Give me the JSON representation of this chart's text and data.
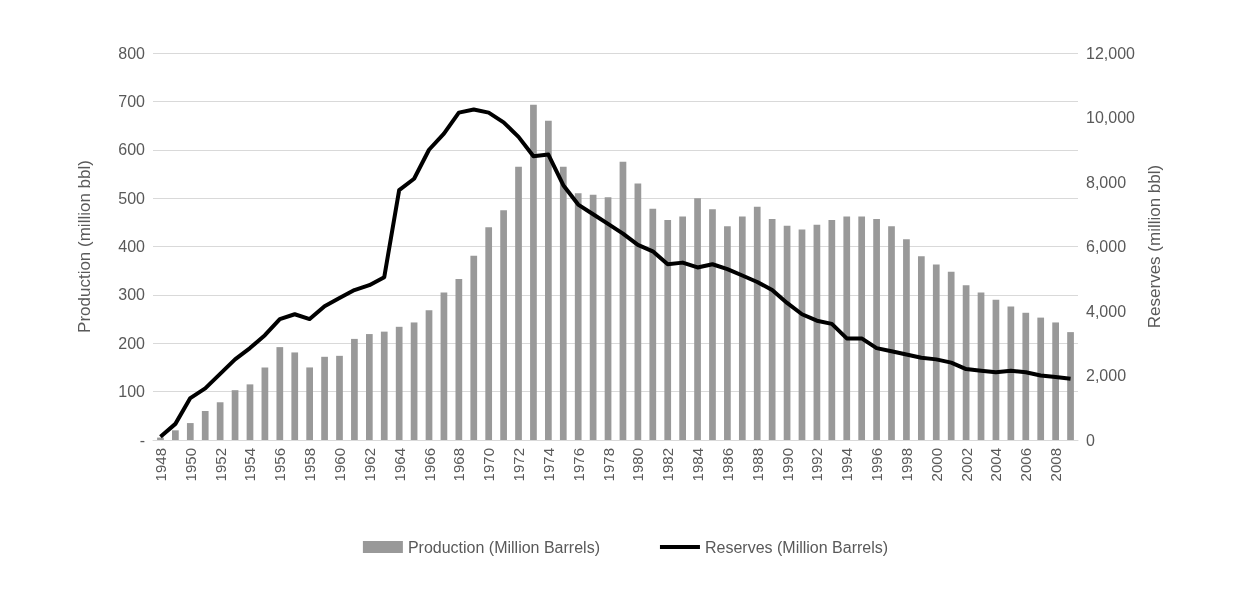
{
  "chart_data": {
    "type": "bar",
    "categories": [
      "1948",
      null,
      "1950",
      null,
      "1952",
      null,
      "1954",
      null,
      "1956",
      null,
      "1958",
      null,
      "1960",
      null,
      "1962",
      null,
      "1964",
      null,
      "1966",
      null,
      "1968",
      null,
      "1970",
      null,
      "1972",
      null,
      "1974",
      null,
      "1976",
      null,
      "1978",
      null,
      "1980",
      null,
      "1982",
      null,
      "1984",
      null,
      "1986",
      null,
      "1988",
      null,
      "1990",
      null,
      "1992",
      null,
      "1994",
      null,
      "1996",
      null,
      "1998",
      null,
      "2000",
      null,
      "2002",
      null,
      "2004",
      null,
      "2006",
      null,
      "2008",
      null
    ],
    "ylabel": "Production (million bbl)",
    "y2label": "Reserves (million bbl)",
    "series": [
      {
        "name": "Production (Million Barrels)",
        "color": "#999999",
        "values": [
          5,
          20,
          35,
          60,
          78,
          103,
          115,
          150,
          192,
          181,
          150,
          172,
          174,
          209,
          219,
          224,
          234,
          243,
          268,
          305,
          333,
          381,
          440,
          475,
          565,
          693,
          660,
          565,
          510,
          507,
          502,
          575,
          530,
          478,
          455,
          462,
          500,
          477,
          442,
          462,
          482,
          457,
          443,
          435,
          445,
          455,
          462,
          462,
          457,
          442,
          415,
          380,
          363,
          348,
          320,
          305,
          290,
          276,
          263,
          253,
          243,
          223
        ]
      },
      {
        "name": "Reserves (Million Barrels)",
        "type": "line",
        "axis": "y2",
        "color": "#000000",
        "values": [
          100,
          500,
          1300,
          1600,
          2050,
          2500,
          2850,
          3250,
          3750,
          3900,
          3750,
          4150,
          4400,
          4650,
          4800,
          5050,
          7750,
          8100,
          9000,
          9500,
          10150,
          10250,
          10150,
          9850,
          9400,
          8800,
          8850,
          7900,
          7300,
          7000,
          6700,
          6400,
          6050,
          5850,
          5450,
          5500,
          5350,
          5450,
          5300,
          5100,
          4900,
          4650,
          4250,
          3900,
          3700,
          3600,
          3150,
          3150,
          2850,
          2750,
          2650,
          2550,
          2500,
          2400,
          2200,
          2150,
          2100,
          2150,
          2100,
          2000,
          1950,
          1900
        ]
      }
    ],
    "ylim": [
      0,
      800
    ],
    "yticks": [
      {
        "value": 0,
        "label": "-"
      },
      100,
      200,
      300,
      400,
      500,
      600,
      700,
      800
    ],
    "y2lim": [
      0,
      12000
    ],
    "y2ticks": [
      0,
      {
        "value": 2000,
        "label": "2,000"
      },
      {
        "value": 4000,
        "label": "4,000"
      },
      {
        "value": 6000,
        "label": "6,000"
      },
      {
        "value": 8000,
        "label": "8,000"
      },
      {
        "value": 10000,
        "label": "10,000"
      },
      {
        "value": 12000,
        "label": "12,000"
      }
    ],
    "grid": "y",
    "legend": "bottom",
    "marker": "none",
    "line_style": "solid"
  }
}
